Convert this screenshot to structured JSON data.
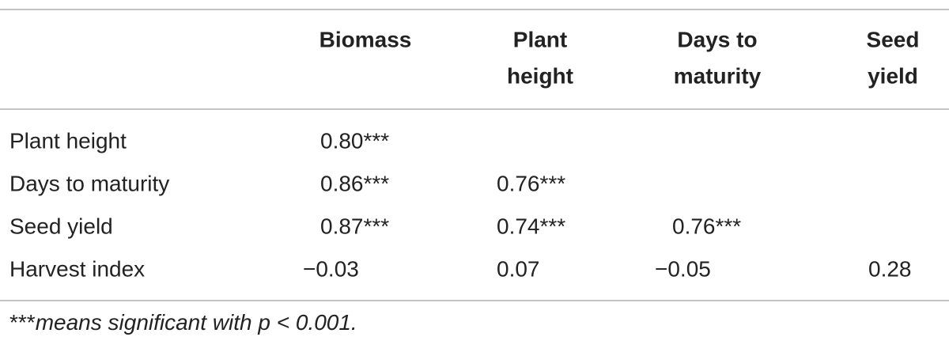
{
  "table": {
    "header": [
      [
        "Biomass"
      ],
      [
        "Plant",
        "height"
      ],
      [
        "Days to",
        "maturity"
      ],
      [
        "Seed",
        "yield"
      ]
    ],
    "rows": [
      [
        "Plant height",
        "0.80***",
        null,
        null,
        null
      ],
      [
        "Days to maturity",
        "0.86***",
        "0.76***",
        null,
        null
      ],
      [
        "Seed yield",
        "0.87***",
        "0.74***",
        "0.76***",
        null
      ],
      [
        "Harvest index",
        "−0.03",
        "0.07",
        "−0.05",
        "0.28"
      ]
    ]
  },
  "footnote": {
    "marker": "***",
    "text": "means significant with p < 0.001."
  }
}
